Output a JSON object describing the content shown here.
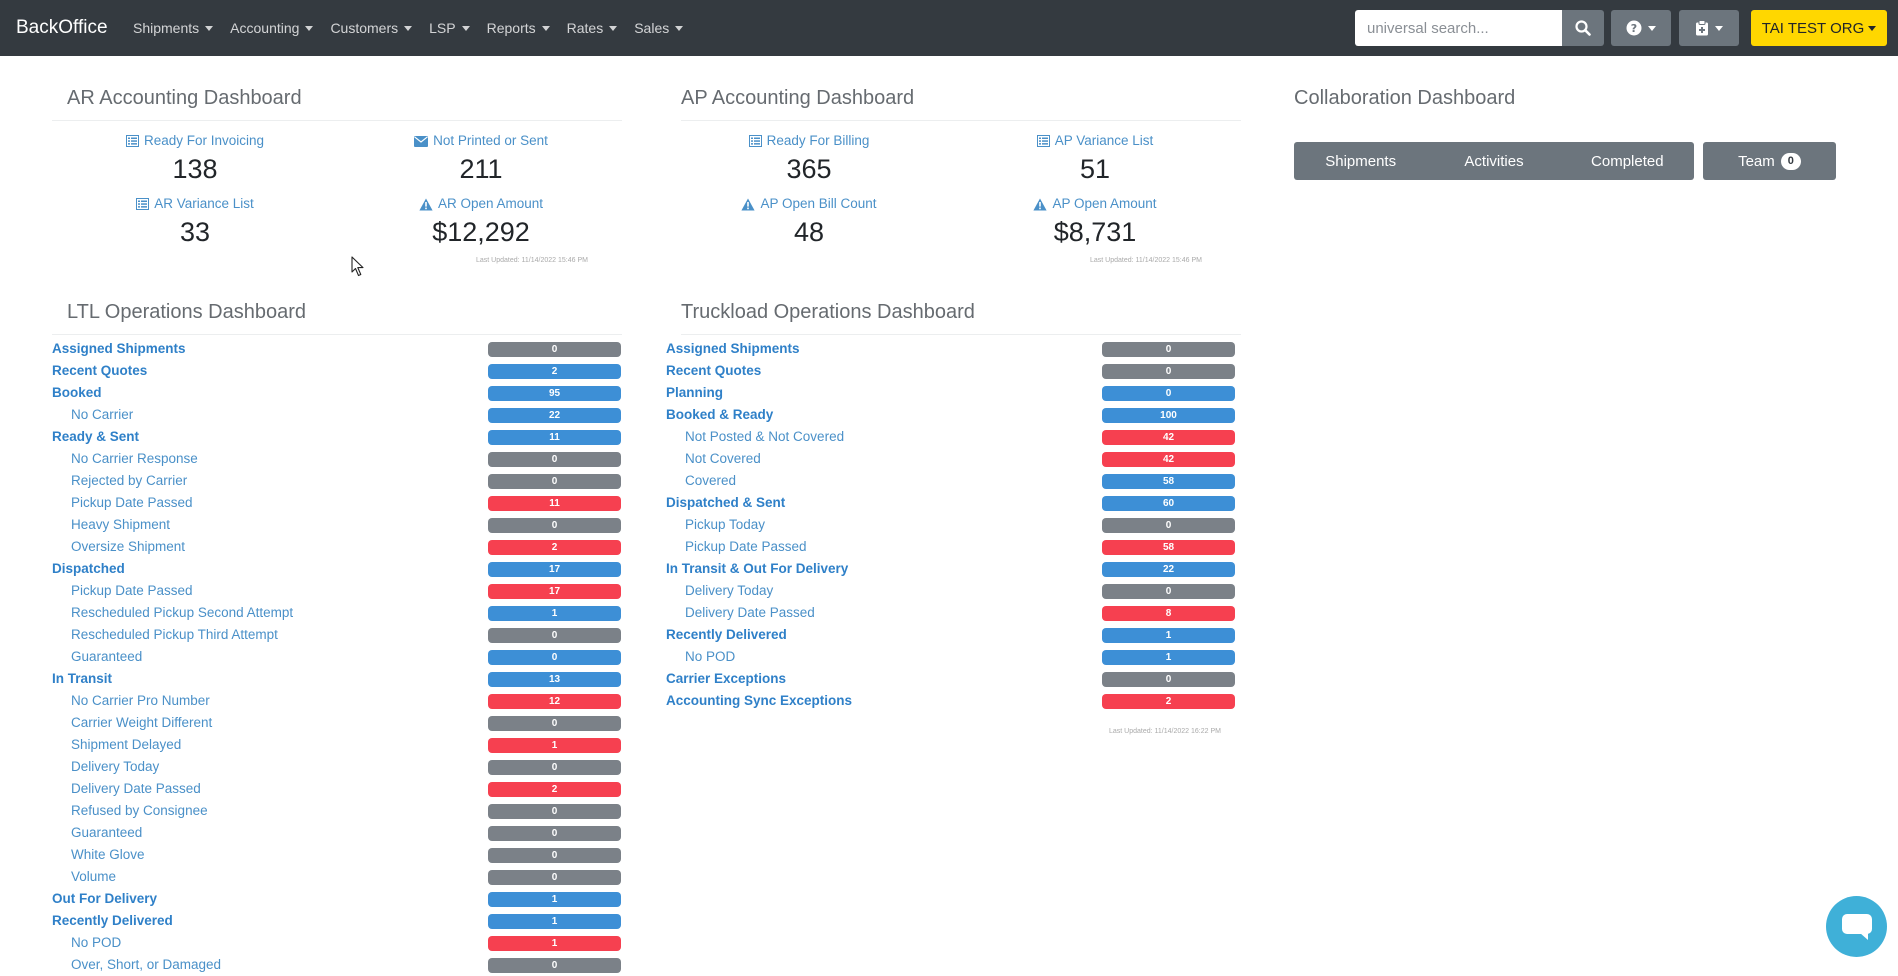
{
  "navbar": {
    "brand": "BackOffice",
    "menu": [
      "Shipments",
      "Accounting",
      "Customers",
      "LSP",
      "Reports",
      "Rates",
      "Sales"
    ],
    "search_placeholder": "universal search...",
    "org_label": "TAI TEST ORG"
  },
  "ar": {
    "title": "AR Accounting Dashboard",
    "ready_label": "Ready For Invoicing",
    "ready_value": "138",
    "notprinted_label": "Not Printed or Sent",
    "notprinted_value": "211",
    "variance_label": "AR Variance List",
    "variance_value": "33",
    "open_label": "AR Open Amount",
    "open_value": "$12,292",
    "updated": "Last Updated: 11/14/2022 15:46 PM"
  },
  "ap": {
    "title": "AP Accounting Dashboard",
    "ready_label": "Ready For Billing",
    "ready_value": "365",
    "variance_label": "AP Variance List",
    "variance_value": "51",
    "billcount_label": "AP Open Bill Count",
    "billcount_value": "48",
    "open_label": "AP Open Amount",
    "open_value": "$8,731",
    "updated": "Last Updated: 11/14/2022 15:46 PM"
  },
  "collab": {
    "title": "Collaboration Dashboard",
    "tabs": [
      "Shipments",
      "Activities",
      "Completed"
    ],
    "team_label": "Team",
    "team_count": "0"
  },
  "ltl": {
    "title": "LTL Operations Dashboard",
    "rows": [
      {
        "label": "Assigned Shipments",
        "value": "0",
        "level": "main",
        "color": "gray"
      },
      {
        "label": "Recent Quotes",
        "value": "2",
        "level": "main",
        "color": "blue"
      },
      {
        "label": "Booked",
        "value": "95",
        "level": "main",
        "color": "blue"
      },
      {
        "label": "No Carrier",
        "value": "22",
        "level": "sub",
        "color": "blue"
      },
      {
        "label": "Ready & Sent",
        "value": "11",
        "level": "main",
        "color": "blue"
      },
      {
        "label": "No Carrier Response",
        "value": "0",
        "level": "sub",
        "color": "gray"
      },
      {
        "label": "Rejected by Carrier",
        "value": "0",
        "level": "sub",
        "color": "gray"
      },
      {
        "label": "Pickup Date Passed",
        "value": "11",
        "level": "sub",
        "color": "red"
      },
      {
        "label": "Heavy Shipment",
        "value": "0",
        "level": "sub",
        "color": "gray"
      },
      {
        "label": "Oversize Shipment",
        "value": "2",
        "level": "sub",
        "color": "red"
      },
      {
        "label": "Dispatched",
        "value": "17",
        "level": "main",
        "color": "blue"
      },
      {
        "label": "Pickup Date Passed",
        "value": "17",
        "level": "sub",
        "color": "red"
      },
      {
        "label": "Rescheduled Pickup Second Attempt",
        "value": "1",
        "level": "sub",
        "color": "blue"
      },
      {
        "label": "Rescheduled Pickup Third Attempt",
        "value": "0",
        "level": "sub",
        "color": "gray"
      },
      {
        "label": "Guaranteed",
        "value": "0",
        "level": "sub",
        "color": "blue"
      },
      {
        "label": "In Transit",
        "value": "13",
        "level": "main",
        "color": "blue"
      },
      {
        "label": "No Carrier Pro Number",
        "value": "12",
        "level": "sub",
        "color": "red"
      },
      {
        "label": "Carrier Weight Different",
        "value": "0",
        "level": "sub",
        "color": "gray"
      },
      {
        "label": "Shipment Delayed",
        "value": "1",
        "level": "sub",
        "color": "red"
      },
      {
        "label": "Delivery Today",
        "value": "0",
        "level": "sub",
        "color": "gray"
      },
      {
        "label": "Delivery Date Passed",
        "value": "2",
        "level": "sub",
        "color": "red"
      },
      {
        "label": "Refused by Consignee",
        "value": "0",
        "level": "sub",
        "color": "gray"
      },
      {
        "label": "Guaranteed",
        "value": "0",
        "level": "sub",
        "color": "gray"
      },
      {
        "label": "White Glove",
        "value": "0",
        "level": "sub",
        "color": "gray"
      },
      {
        "label": "Volume",
        "value": "0",
        "level": "sub",
        "color": "gray"
      },
      {
        "label": "Out For Delivery",
        "value": "1",
        "level": "main",
        "color": "blue"
      },
      {
        "label": "Recently Delivered",
        "value": "1",
        "level": "main",
        "color": "blue"
      },
      {
        "label": "No POD",
        "value": "1",
        "level": "sub",
        "color": "red"
      },
      {
        "label": "Over, Short, or Damaged",
        "value": "0",
        "level": "sub",
        "color": "gray"
      }
    ]
  },
  "tl": {
    "title": "Truckload Operations Dashboard",
    "rows": [
      {
        "label": "Assigned Shipments",
        "value": "0",
        "level": "main",
        "color": "gray"
      },
      {
        "label": "Recent Quotes",
        "value": "0",
        "level": "main",
        "color": "gray"
      },
      {
        "label": "Planning",
        "value": "0",
        "level": "main",
        "color": "blue"
      },
      {
        "label": "Booked & Ready",
        "value": "100",
        "level": "main",
        "color": "blue"
      },
      {
        "label": "Not Posted & Not Covered",
        "value": "42",
        "level": "sub",
        "color": "red"
      },
      {
        "label": "Not Covered",
        "value": "42",
        "level": "sub",
        "color": "red"
      },
      {
        "label": "Covered",
        "value": "58",
        "level": "sub",
        "color": "blue"
      },
      {
        "label": "Dispatched & Sent",
        "value": "60",
        "level": "main",
        "color": "blue"
      },
      {
        "label": "Pickup Today",
        "value": "0",
        "level": "sub",
        "color": "gray"
      },
      {
        "label": "Pickup Date Passed",
        "value": "58",
        "level": "sub",
        "color": "red"
      },
      {
        "label": "In Transit & Out For Delivery",
        "value": "22",
        "level": "main",
        "color": "blue"
      },
      {
        "label": "Delivery Today",
        "value": "0",
        "level": "sub",
        "color": "gray"
      },
      {
        "label": "Delivery Date Passed",
        "value": "8",
        "level": "sub",
        "color": "red"
      },
      {
        "label": "Recently Delivered",
        "value": "1",
        "level": "main",
        "color": "blue"
      },
      {
        "label": "No POD",
        "value": "1",
        "level": "sub",
        "color": "blue"
      },
      {
        "label": "Carrier Exceptions",
        "value": "0",
        "level": "main",
        "color": "gray"
      },
      {
        "label": "Accounting Sync Exceptions",
        "value": "2",
        "level": "main",
        "color": "red"
      }
    ],
    "updated": "Last Updated: 11/14/2022 16:22 PM"
  },
  "icons": {
    "list": "list-icon",
    "envelope": "envelope-icon",
    "warning": "warning-icon",
    "search": "search-icon",
    "help": "help-icon",
    "clipboard": "clipboard-icon",
    "chat": "chat-icon"
  },
  "colors": {
    "navbar": "#343a40",
    "link": "#2f80c8",
    "gray_pill": "#7b8188",
    "blue_pill": "#3d8fd6",
    "red_pill": "#f64050",
    "org_button": "#ffd700",
    "chat": "#3fb0d8"
  }
}
